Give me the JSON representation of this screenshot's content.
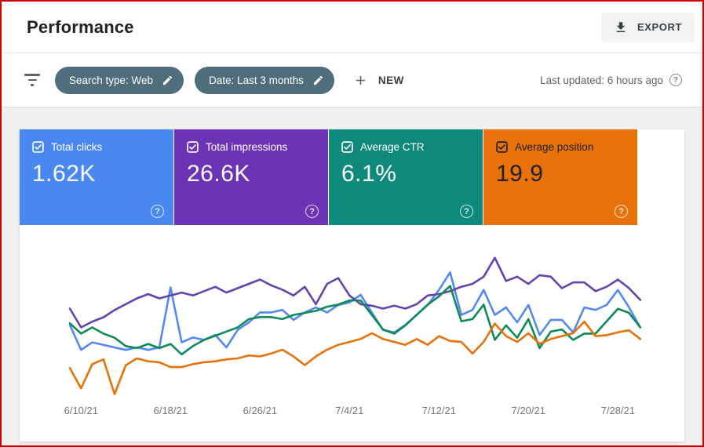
{
  "window": {
    "frame_color": "#cc0000"
  },
  "header": {
    "title": "Performance",
    "export_label": "EXPORT"
  },
  "filter_bar": {
    "chips": [
      {
        "label": "Search type: Web"
      },
      {
        "label": "Date: Last 3 months"
      }
    ],
    "new_label": "NEW",
    "last_updated": "Last updated: 6 hours ago",
    "help_glyph": "?"
  },
  "metric_cards": [
    {
      "label": "Total clicks",
      "value": "1.62K",
      "color": "#4988f3",
      "text_color": "#ffffff",
      "checkbox_color": "#ffffff",
      "checked": true
    },
    {
      "label": "Total impressions",
      "value": "26.6K",
      "color": "#6d33b6",
      "text_color": "#ffffff",
      "checkbox_color": "#ffffff",
      "checked": true
    },
    {
      "label": "Average CTR",
      "value": "6.1%",
      "color": "#0e897c",
      "text_color": "#ffffff",
      "checkbox_color": "#ffffff",
      "checked": true
    },
    {
      "label": "Average position",
      "value": "19.9",
      "color": "#e8710a",
      "text_color": "#202124",
      "checkbox_color": "#202124",
      "checked": true
    }
  ],
  "icons": {
    "export": "download-icon",
    "chip_edit": "pencil-icon",
    "filter": "filter-list-icon",
    "new": "plus-icon",
    "help": "question-circle-icon",
    "metric": "checked-checkbox-icon"
  },
  "chart_data": {
    "type": "line",
    "title": "",
    "xlabel": "",
    "ylabel": "",
    "grid": false,
    "legend_position": "none",
    "x_tick_labels": [
      "6/10/21",
      "6/18/21",
      "6/26/21",
      "7/4/21",
      "7/12/21",
      "7/20/21",
      "7/28/21"
    ],
    "x_tick_indices": [
      1,
      9,
      17,
      25,
      33,
      41,
      49
    ],
    "series": [
      {
        "name": "Total clicks",
        "color": "#5389f4",
        "axis_range": [
          0,
          58
        ],
        "values": [
          30,
          20,
          23,
          22,
          21,
          20,
          21,
          20,
          21,
          45,
          23,
          25,
          24,
          26,
          21,
          28,
          31,
          35,
          35,
          36,
          32,
          35,
          37,
          35,
          38,
          39,
          42,
          35,
          28,
          27,
          30,
          34,
          38,
          44,
          51,
          34,
          36,
          44,
          34,
          37,
          31,
          38,
          26,
          32,
          32,
          27,
          37,
          36,
          38,
          44,
          37,
          29
        ]
      },
      {
        "name": "Total impressions",
        "color": "#6442b0",
        "axis_range": [
          200,
          600
        ],
        "values": [
          452,
          400,
          416,
          428,
          448,
          464,
          480,
          492,
          480,
          488,
          496,
          488,
          500,
          512,
          496,
          508,
          520,
          532,
          516,
          504,
          488,
          512,
          464,
          520,
          536,
          488,
          464,
          460,
          452,
          460,
          452,
          464,
          488,
          492,
          500,
          512,
          520,
          540,
          592,
          528,
          540,
          520,
          544,
          540,
          508,
          524,
          524,
          500,
          512,
          532,
          508,
          476
        ]
      },
      {
        "name": "Average CTR",
        "color": "#0d8a56",
        "axis_range": [
          2.5,
          9.5
        ],
        "values": [
          6.2,
          5.7,
          6.0,
          5.7,
          5.5,
          5.1,
          5.0,
          5.2,
          5.0,
          5.2,
          4.7,
          5.1,
          5.4,
          5.6,
          5.8,
          6.0,
          6.4,
          6.5,
          6.5,
          6.4,
          6.6,
          6.7,
          6.8,
          7.0,
          7.1,
          7.3,
          7.3,
          6.6,
          5.9,
          5.7,
          6.1,
          6.6,
          7.1,
          7.5,
          8.0,
          6.3,
          6.4,
          7.1,
          5.4,
          6.1,
          5.5,
          6.4,
          5.0,
          5.8,
          5.9,
          5.4,
          5.7,
          5.7,
          6.3,
          6.9,
          6.7,
          6.0
        ]
      },
      {
        "name": "Average position",
        "color": "#e8710a",
        "axis_range": [
          25,
          10
        ],
        "inverted_axis": true,
        "values": [
          21.7,
          23.8,
          21.3,
          20.8,
          24.4,
          21.4,
          20.7,
          21.0,
          21.1,
          21.6,
          21.6,
          21.3,
          21.1,
          21.0,
          20.8,
          20.7,
          20.4,
          20.5,
          20.2,
          19.8,
          20.5,
          21.4,
          20.5,
          19.8,
          19.3,
          19.0,
          18.7,
          18.1,
          18.7,
          19.0,
          19.3,
          18.7,
          19.3,
          18.4,
          18.9,
          19.0,
          20.2,
          19.0,
          17.1,
          18.4,
          19.0,
          18.1,
          19.2,
          18.7,
          18.4,
          18.1,
          16.9,
          18.4,
          18.3,
          18.0,
          17.8,
          18.7
        ]
      }
    ]
  }
}
